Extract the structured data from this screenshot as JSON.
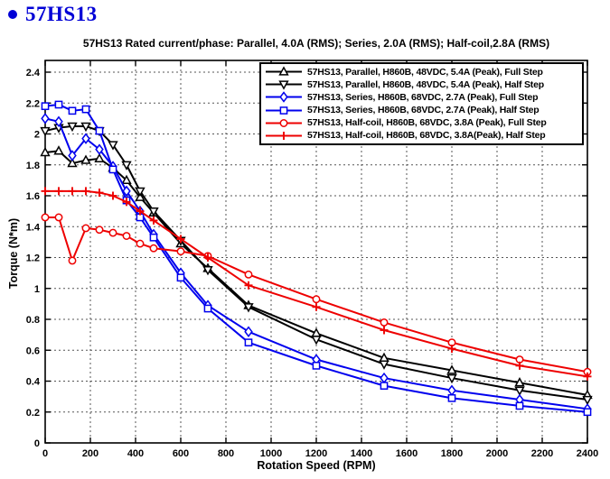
{
  "page": {
    "bullet": "•",
    "heading": "57HS13"
  },
  "chart_data": {
    "type": "line",
    "title": "57HS13 Rated current/phase: Parallel, 4.0A (RMS); Series, 2.0A (RMS); Half-coil,2.8A (RMS)",
    "xlabel": "Rotation Speed (RPM)",
    "ylabel": "Torque (N*m)",
    "xlim": [
      0,
      2400
    ],
    "ylim": [
      0,
      2.475
    ],
    "grid": "dashed",
    "legend_position": "top-right-inside",
    "x_ticks": [
      0,
      200,
      400,
      600,
      800,
      1000,
      1200,
      1400,
      1600,
      1800,
      2000,
      2200,
      2400
    ],
    "x_tick_labels": [
      "0",
      "200",
      "400",
      "600",
      "800",
      "1000",
      "1200",
      "1400",
      "1600",
      "1800",
      "2000",
      "2200",
      "2400"
    ],
    "y_ticks": [
      0,
      0.2,
      0.4,
      0.6,
      0.8,
      1.0,
      1.2,
      1.4,
      1.6,
      1.8,
      2.0,
      2.2,
      2.4
    ],
    "y_tick_labels": [
      "0",
      "0.2",
      "0.4",
      "0.6",
      "0.8",
      "1",
      "1.2",
      "1.4",
      "1.6",
      "1.8",
      "2",
      "2.2",
      "2.4"
    ],
    "x": [
      0,
      60,
      120,
      180,
      240,
      300,
      360,
      420,
      480,
      600,
      720,
      900,
      1200,
      1500,
      1800,
      2100,
      2400
    ],
    "series": [
      {
        "label": "57HS13, Parallel, H860B, 48VDC, 5.4A (Peak), Full Step",
        "color": "#000000",
        "marker": "triangle-up",
        "values": [
          1.88,
          1.89,
          1.81,
          1.83,
          1.84,
          1.78,
          1.7,
          1.59,
          1.49,
          1.29,
          1.13,
          0.89,
          0.71,
          0.55,
          0.47,
          0.39,
          0.31
        ]
      },
      {
        "label": "57HS13, Parallel, H860B, 48VDC, 5.4A (Peak), Half Step",
        "color": "#000000",
        "marker": "triangle-down",
        "values": [
          2.02,
          2.04,
          2.05,
          2.05,
          2.02,
          1.93,
          1.8,
          1.63,
          1.5,
          1.31,
          1.12,
          0.88,
          0.67,
          0.51,
          0.42,
          0.34,
          0.28
        ]
      },
      {
        "label": "57HS13, Series, H860B, 68VDC, 2.7A (Peak), Full Step",
        "color": "#0000ee",
        "marker": "diamond",
        "values": [
          2.1,
          2.08,
          1.86,
          1.97,
          1.9,
          1.79,
          1.63,
          1.5,
          1.35,
          1.1,
          0.89,
          0.72,
          0.54,
          0.42,
          0.34,
          0.28,
          0.22
        ]
      },
      {
        "label": "57HS13, Series, H860B, 68VDC, 2.7A (Peak), Half Step",
        "color": "#0000ee",
        "marker": "square",
        "values": [
          2.18,
          2.19,
          2.15,
          2.16,
          2.02,
          1.77,
          1.57,
          1.46,
          1.33,
          1.07,
          0.87,
          0.65,
          0.5,
          0.37,
          0.29,
          0.24,
          0.2
        ]
      },
      {
        "label": "57HS13, Half-coil, H860B, 68VDC, 3.8A (Peak), Full Step",
        "color": "#ee0000",
        "marker": "circle",
        "values": [
          1.46,
          1.46,
          1.18,
          1.39,
          1.38,
          1.36,
          1.34,
          1.29,
          1.26,
          1.24,
          1.21,
          1.09,
          0.93,
          0.78,
          0.65,
          0.54,
          0.46
        ]
      },
      {
        "label": "57HS13, Half-coil, H860B, 68VDC, 3.8A(Peak), Half Step",
        "color": "#ee0000",
        "marker": "plus",
        "values": [
          1.63,
          1.63,
          1.63,
          1.63,
          1.62,
          1.6,
          1.56,
          1.5,
          1.44,
          1.32,
          1.2,
          1.02,
          0.88,
          0.73,
          0.61,
          0.5,
          0.43
        ]
      }
    ]
  }
}
